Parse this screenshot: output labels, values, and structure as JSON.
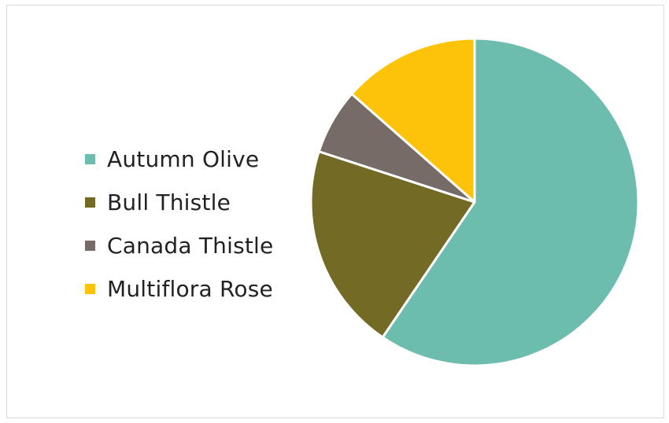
{
  "chart_data": {
    "type": "pie",
    "title": "",
    "legend_position": "left",
    "categories": [
      "Autumn Olive",
      "Bull Thistle",
      "Canada Thistle",
      "Multiflora Rose"
    ],
    "values": [
      59.5,
      20.5,
      6.5,
      13.5
    ],
    "colors": [
      "#6dbdaf",
      "#736b25",
      "#766b66",
      "#fcc30a"
    ],
    "series": [
      {
        "name": "",
        "values": [
          59.5,
          20.5,
          6.5,
          13.5
        ]
      }
    ],
    "start_angle_degrees": 0,
    "direction": "clockwise"
  }
}
